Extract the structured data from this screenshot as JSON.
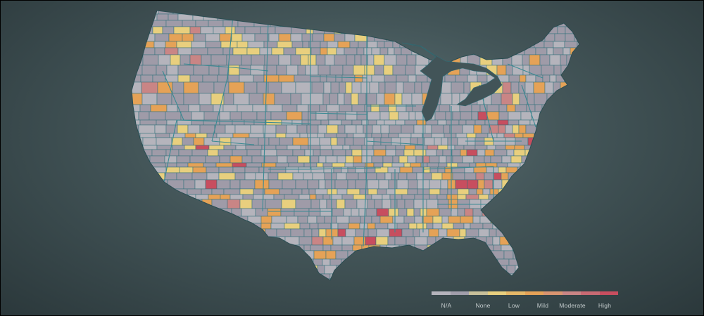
{
  "colors": {
    "background": "#435558",
    "boundary": "#2e6f78",
    "state_boundary": "#3a8a93",
    "categories": {
      "N/A": "#b5b4bc",
      "None": "#9f9ba8",
      "Low": "#e8cf7e",
      "Mild": "#e5a257",
      "Moderate": "#c98585",
      "High": "#c74e5f"
    }
  },
  "map": {
    "type": "choropleth",
    "region": "Contiguous United States, counties",
    "color_scale": [
      "N/A",
      "None",
      "Low",
      "Mild",
      "Moderate",
      "High"
    ]
  },
  "legend": {
    "items": [
      {
        "label": "N/A",
        "color": "#b5b4bc"
      },
      {
        "label": "None",
        "color": "#a19eab"
      },
      {
        "label": "",
        "color": "#c8c09a"
      },
      {
        "label": "Low",
        "color": "#e8cf7e"
      },
      {
        "label": "",
        "color": "#e6b868"
      },
      {
        "label": "Mild",
        "color": "#e5a257"
      },
      {
        "label": "",
        "color": "#d99470"
      },
      {
        "label": "Moderate",
        "color": "#c98585"
      },
      {
        "label": "",
        "color": "#c86a73"
      },
      {
        "label": "High",
        "color": "#c74e5f"
      }
    ]
  }
}
